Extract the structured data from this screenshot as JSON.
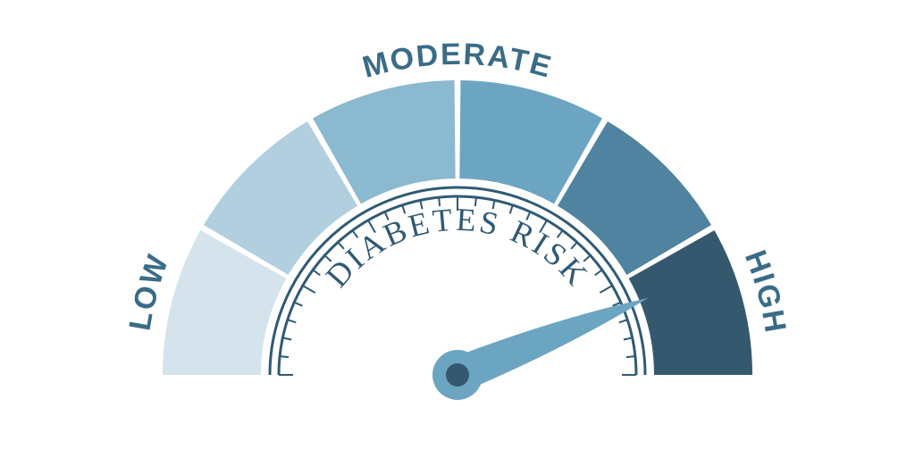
{
  "gauge": {
    "type": "gauge",
    "center_text": "DIABETES RISK",
    "center_text_color": "#2f5a75",
    "center_text_fontsize": 36,
    "background_color": "#ffffff",
    "outer_radius": 330,
    "inner_radius": 220,
    "tick_ring_outer": 210,
    "tick_ring_inner": 200,
    "segment_gap_deg": 1.2,
    "start_angle_deg": 180,
    "end_angle_deg": 0,
    "segments": [
      {
        "color": "#d4e3ec"
      },
      {
        "color": "#b1cfdf"
      },
      {
        "color": "#8bb9d0"
      },
      {
        "color": "#6ca5c2"
      },
      {
        "color": "#4f839f"
      },
      {
        "color": "#34596f"
      }
    ],
    "labels": [
      {
        "text": "LOW",
        "segment_index": 0,
        "fontsize": 34,
        "color": "#3a6c88"
      },
      {
        "text": "MODERATE",
        "segment_index": 2,
        "fontsize": 34,
        "color": "#3a6c88",
        "span": 2,
        "start_index": 2
      },
      {
        "text": "HIGH",
        "segment_index": 5,
        "fontsize": 34,
        "color": "#3a6c88"
      }
    ],
    "ring_stroke_color": "#2f5a75",
    "ring_stroke_width": 3,
    "tick_count": 31,
    "tick_color": "#2f5a75",
    "tick_width": 2,
    "tick_len_minor": 10,
    "tick_len_major": 16,
    "needle": {
      "angle_deg": 22,
      "length": 230,
      "base_width": 40,
      "color": "#6ca5c2",
      "hub_radius": 28,
      "hub_color": "#6ca5c2",
      "hub_inner_radius": 13,
      "hub_inner_color": "#34596f"
    }
  }
}
